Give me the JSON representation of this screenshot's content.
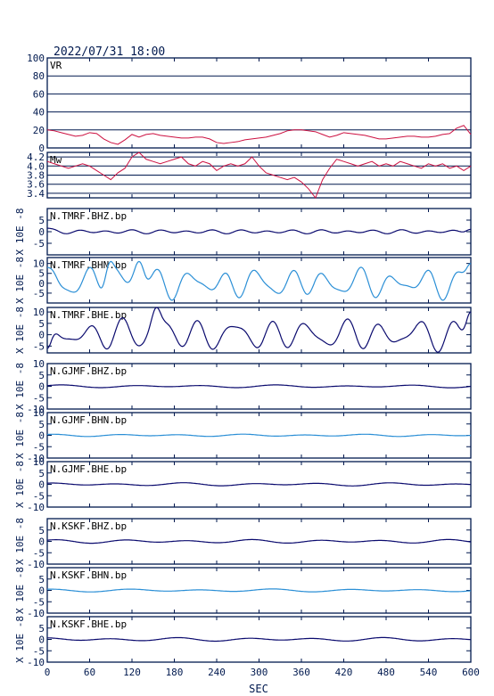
{
  "header": {
    "datetime": "2022/07/31 18:00"
  },
  "x_axis": {
    "label": "SEC",
    "ticks": [
      0,
      60,
      120,
      180,
      240,
      300,
      360,
      420,
      480,
      540,
      600
    ],
    "range": [
      0,
      600
    ]
  },
  "colors": {
    "frame": "#00194f",
    "vr_mw": "#cc1040",
    "bhz_bhe": "#0a0a6e",
    "bhn": "#2b8fd6"
  },
  "chart_data": [
    {
      "type": "line",
      "id": "vr",
      "label": "VR",
      "ylim": [
        0,
        100
      ],
      "yticks": [
        0,
        20,
        40,
        60,
        80,
        100
      ],
      "grid": true,
      "x": [
        0,
        10,
        20,
        30,
        40,
        50,
        60,
        70,
        80,
        90,
        100,
        110,
        120,
        130,
        140,
        150,
        160,
        170,
        180,
        190,
        200,
        210,
        220,
        230,
        240,
        250,
        260,
        270,
        280,
        290,
        300,
        310,
        320,
        330,
        340,
        350,
        360,
        370,
        380,
        390,
        400,
        410,
        420,
        430,
        440,
        450,
        460,
        470,
        480,
        490,
        500,
        510,
        520,
        530,
        540,
        550,
        560,
        570,
        580,
        590,
        600
      ],
      "values": [
        20,
        19,
        17,
        15,
        13,
        14,
        17,
        16,
        10,
        6,
        4,
        9,
        15,
        12,
        15,
        16,
        14,
        13,
        12,
        11,
        11,
        12,
        12,
        10,
        6,
        5,
        6,
        7,
        9,
        10,
        11,
        12,
        14,
        16,
        19,
        20,
        20,
        19,
        18,
        15,
        12,
        14,
        17,
        16,
        15,
        14,
        12,
        10,
        10,
        11,
        12,
        13,
        13,
        12,
        12,
        13,
        15,
        16,
        22,
        25,
        15
      ]
    },
    {
      "type": "line",
      "id": "mw",
      "label": "Mw",
      "ylim": [
        3.3,
        4.3
      ],
      "yticks": [
        3.4,
        3.6,
        3.8,
        4.0,
        4.2
      ],
      "grid": true,
      "x": [
        0,
        10,
        20,
        30,
        40,
        50,
        60,
        70,
        80,
        90,
        100,
        110,
        120,
        130,
        140,
        150,
        160,
        170,
        180,
        190,
        200,
        210,
        220,
        230,
        240,
        250,
        260,
        270,
        280,
        290,
        300,
        310,
        320,
        330,
        340,
        350,
        360,
        370,
        380,
        390,
        400,
        410,
        420,
        430,
        440,
        450,
        460,
        470,
        480,
        490,
        500,
        510,
        520,
        530,
        540,
        550,
        560,
        570,
        580,
        590,
        600
      ],
      "values": [
        4.1,
        4.05,
        4.0,
        3.95,
        4.0,
        4.05,
        4.0,
        3.9,
        3.8,
        3.7,
        3.85,
        3.95,
        4.2,
        4.3,
        4.15,
        4.1,
        4.05,
        4.1,
        4.15,
        4.2,
        4.05,
        4.0,
        4.1,
        4.05,
        3.9,
        4.0,
        4.05,
        4.0,
        4.05,
        4.2,
        4.0,
        3.85,
        3.8,
        3.75,
        3.7,
        3.75,
        3.65,
        3.5,
        3.3,
        3.7,
        3.95,
        4.15,
        4.1,
        4.05,
        4.0,
        4.05,
        4.1,
        4.0,
        4.05,
        4.0,
        4.1,
        4.05,
        4.0,
        3.95,
        4.05,
        4.0,
        4.05,
        3.95,
        4.0,
        3.9,
        4.0
      ]
    },
    {
      "type": "line",
      "id": "tmrf-bhz",
      "label": "N.TMRF.BHZ.bp",
      "yaxis_label": "X 10E -8",
      "ylim": [
        -10,
        10
      ],
      "yticks": [
        -5,
        0,
        5
      ],
      "color_key": "bhz_bhe",
      "amplitude": 0.6,
      "waves": [
        [
          9.5,
          1,
          0.4
        ],
        [
          14,
          0.5,
          1.3
        ]
      ],
      "edges": [
        [
          0,
          1.5
        ],
        [
          600,
          1
        ]
      ]
    },
    {
      "type": "line",
      "id": "tmrf-bhn",
      "label": "N.TMRF.BHN.bp",
      "yaxis_label": "X 10E -8",
      "ylim": [
        -10,
        13
      ],
      "yticks": [
        -5,
        0,
        5,
        10
      ],
      "color_key": "bhn",
      "amplitude": 5.0,
      "waves": [
        [
          12,
          1,
          0.3
        ],
        [
          8,
          0.45,
          1.7
        ],
        [
          19,
          0.3,
          2.5
        ]
      ],
      "edges": [
        [
          0,
          8
        ],
        [
          90,
          11
        ],
        [
          130,
          11
        ],
        [
          600,
          10
        ]
      ]
    },
    {
      "type": "line",
      "id": "tmrf-bhe",
      "label": "N.TMRF.BHE.bp",
      "yaxis_label": "X 10E -8",
      "ylim": [
        -8,
        12
      ],
      "yticks": [
        -5,
        0,
        5,
        10
      ],
      "color_key": "bhz_bhe",
      "amplitude": 4.6,
      "waves": [
        [
          13,
          1,
          0.9
        ],
        [
          9,
          0.5,
          2.2
        ],
        [
          21,
          0.25,
          0.4
        ]
      ],
      "edges": [
        [
          0,
          -6
        ],
        [
          155,
          12
        ],
        [
          600,
          10
        ]
      ]
    },
    {
      "type": "line",
      "id": "gjmf-bhz",
      "label": "N.GJMF.BHZ.bp",
      "yaxis_label": "X 10E -8",
      "ylim": [
        -10,
        10
      ],
      "yticks": [
        -10,
        -5,
        0,
        5,
        10
      ],
      "color_key": "bhz_bhe",
      "amplitude": 0.4,
      "waves": [
        [
          25,
          1,
          0.2
        ],
        [
          40,
          0.6,
          1.1
        ]
      ],
      "edges": []
    },
    {
      "type": "line",
      "id": "gjmf-bhn",
      "label": "N.GJMF.BHN.bp",
      "yaxis_label": "X 10E -8",
      "ylim": [
        -10,
        10
      ],
      "yticks": [
        -10,
        -5,
        0,
        5,
        10
      ],
      "color_key": "bhn",
      "amplitude": 0.35,
      "waves": [
        [
          22,
          1,
          0.7
        ],
        [
          37,
          0.5,
          2.0
        ]
      ],
      "edges": []
    },
    {
      "type": "line",
      "id": "gjmf-bhe",
      "label": "N.GJMF.BHE.bp",
      "yaxis_label": "X 10E -8",
      "ylim": [
        -10,
        10
      ],
      "yticks": [
        -10,
        -5,
        0,
        5,
        10
      ],
      "color_key": "bhz_bhe",
      "amplitude": 0.45,
      "waves": [
        [
          24,
          1,
          1.4
        ],
        [
          39,
          0.6,
          0.3
        ]
      ],
      "edges": []
    },
    {
      "type": "line",
      "id": "kskf-bhz",
      "label": "N.KSKF.BHZ.bp",
      "yaxis_label": "X 10E -8",
      "ylim": [
        -10,
        10
      ],
      "yticks": [
        -10,
        -5,
        0,
        5
      ],
      "color_key": "bhz_bhe",
      "amplitude": 0.55,
      "waves": [
        [
          23,
          1,
          0.5
        ],
        [
          36,
          0.5,
          1.8
        ]
      ],
      "edges": []
    },
    {
      "type": "line",
      "id": "kskf-bhn",
      "label": "N.KSKF.BHN.bp",
      "yaxis_label": "X 10E -8",
      "ylim": [
        -10,
        10
      ],
      "yticks": [
        -10,
        -5,
        0,
        5
      ],
      "color_key": "bhn",
      "amplitude": 0.45,
      "waves": [
        [
          26,
          1,
          1.0
        ],
        [
          41,
          0.5,
          2.4
        ]
      ],
      "edges": []
    },
    {
      "type": "line",
      "id": "kskf-bhe",
      "label": "N.KSKF.BHE.bp",
      "yaxis_label": "X 10E -8",
      "ylim": [
        -10,
        10
      ],
      "yticks": [
        -10,
        -5,
        0,
        5
      ],
      "color_key": "bhz_bhe",
      "amplitude": 0.55,
      "waves": [
        [
          24,
          1,
          1.9
        ],
        [
          38,
          0.5,
          0.6
        ]
      ],
      "edges": []
    }
  ]
}
